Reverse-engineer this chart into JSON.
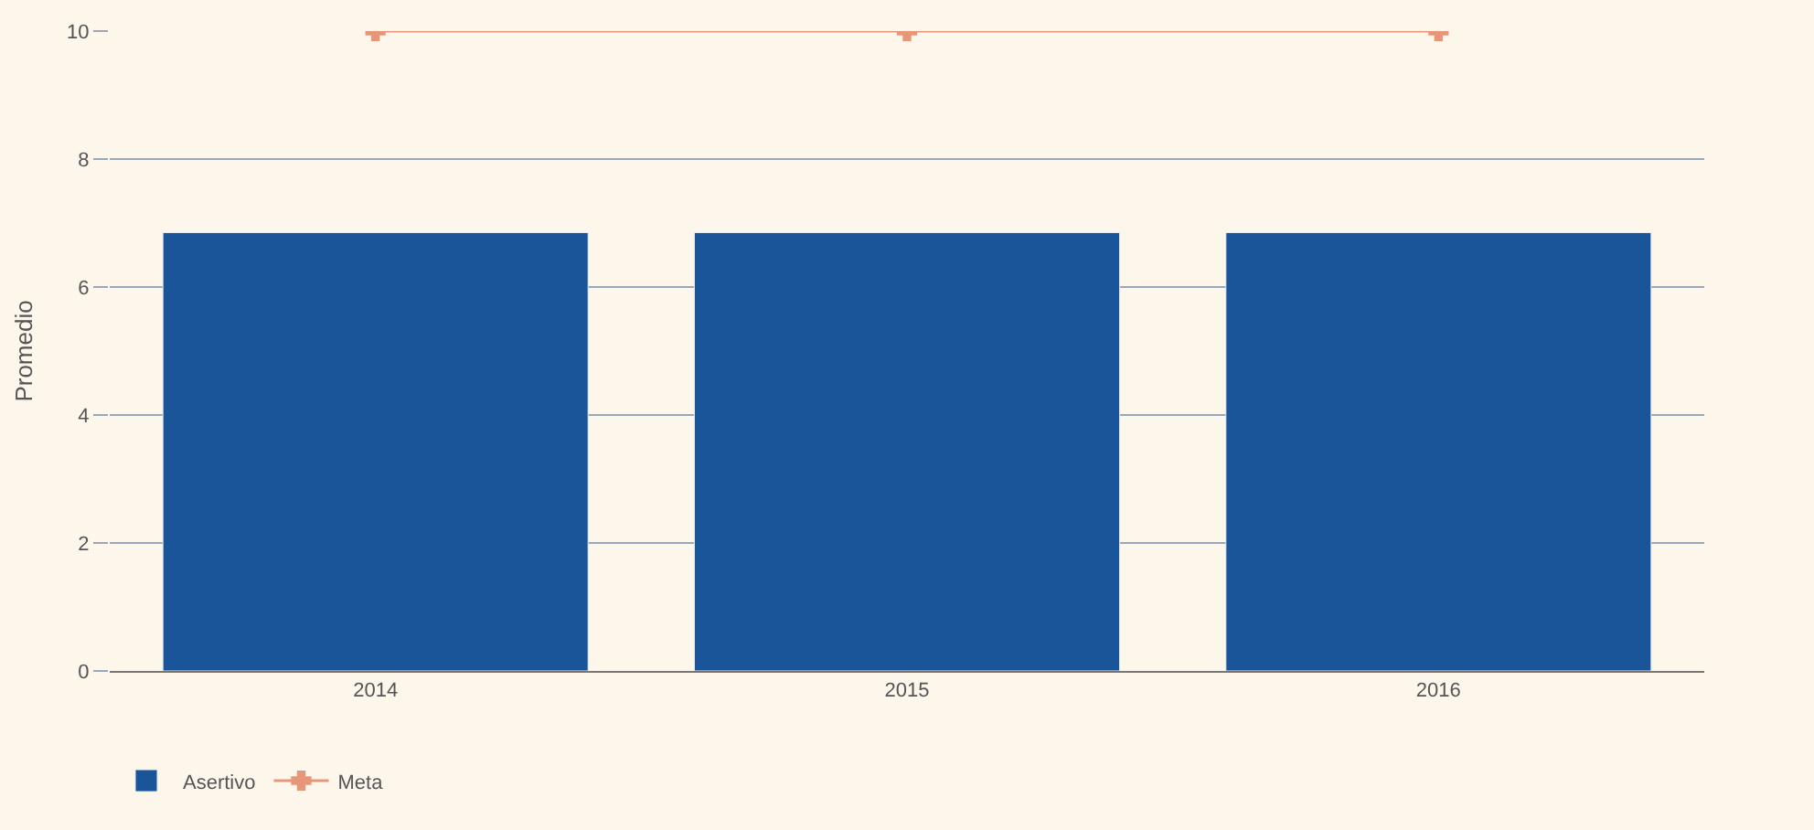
{
  "chart_data": {
    "type": "bar",
    "ylabel": "Promedio",
    "categories": [
      "2014",
      "2015",
      "2016"
    ],
    "series": [
      {
        "name": "Asertivo",
        "color": "#1a5599",
        "values": [
          6.85,
          6.85,
          6.85
        ]
      },
      {
        "name": "Meta",
        "type": "line",
        "color": "#e8967a",
        "values": [
          10,
          10,
          10
        ],
        "marker": "cross"
      }
    ],
    "ylim": [
      0,
      10
    ],
    "yticks": [
      0,
      2,
      4,
      6,
      8,
      10
    ],
    "grid": "y",
    "legend": "bottom left"
  }
}
